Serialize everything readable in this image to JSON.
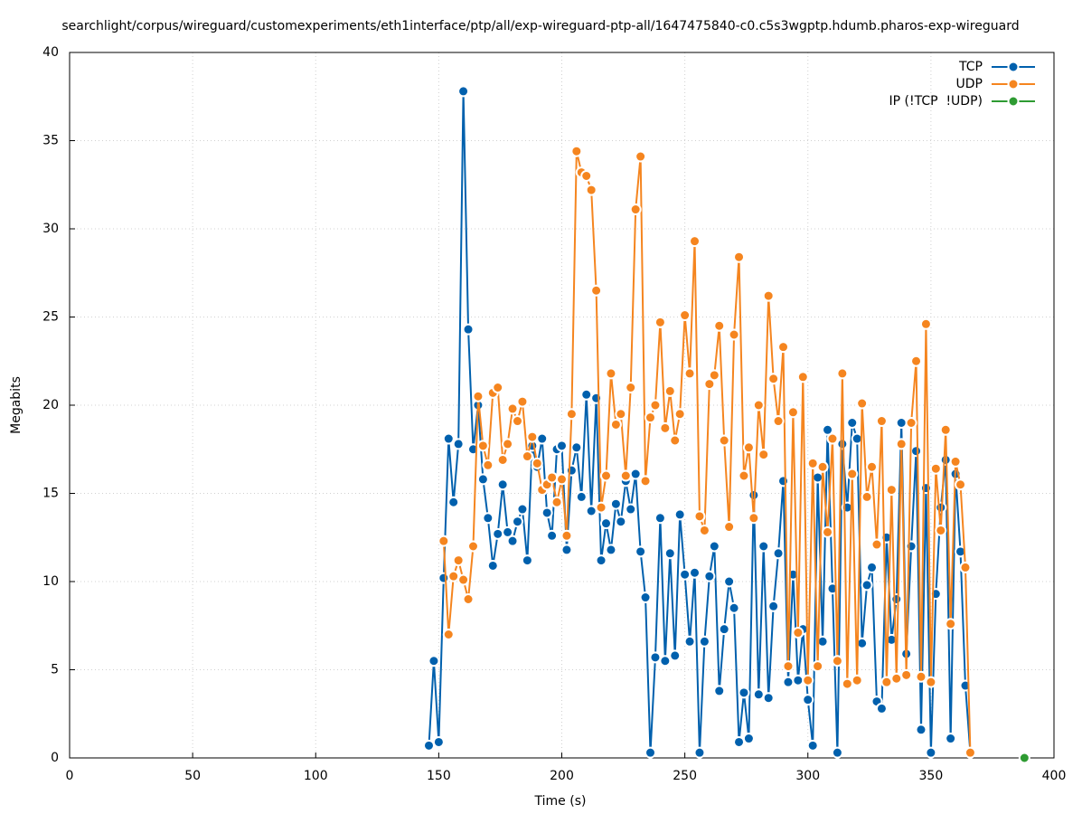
{
  "chart_data": {
    "type": "line",
    "title": "searchlight/corpus/wireguard/customexperiments/eth1interface/ptp/all/exp-wireguard-ptp-all/1647475840-c0.c5s3wgptp.hdumb.pharos-exp-wireguard",
    "x_label": "Time (s)",
    "y_label": "Megabits",
    "xlim": [
      0,
      400
    ],
    "xticks": [
      0,
      50,
      100,
      150,
      200,
      250,
      300,
      350,
      400
    ],
    "ylim": [
      0,
      40
    ],
    "yticks": [
      0,
      5,
      10,
      15,
      20,
      25,
      30,
      35,
      40
    ],
    "grid": true,
    "legend": "top-right",
    "x": [
      146,
      148,
      150,
      152,
      154,
      156,
      158,
      160,
      162,
      164,
      166,
      168,
      170,
      172,
      174,
      176,
      178,
      180,
      182,
      184,
      186,
      188,
      190,
      192,
      194,
      196,
      198,
      200,
      202,
      204,
      206,
      208,
      210,
      212,
      214,
      216,
      218,
      220,
      222,
      224,
      226,
      228,
      230,
      232,
      234,
      236,
      238,
      240,
      242,
      244,
      246,
      248,
      250,
      252,
      254,
      256,
      258,
      260,
      262,
      264,
      266,
      268,
      270,
      272,
      274,
      276,
      278,
      280,
      282,
      284,
      286,
      288,
      290,
      292,
      294,
      296,
      298,
      300,
      302,
      304,
      306,
      308,
      310,
      312,
      314,
      316,
      318,
      320,
      322,
      324,
      326,
      328,
      330,
      332,
      334,
      336,
      338,
      340,
      342,
      344,
      346,
      348,
      350,
      352,
      354,
      356,
      358,
      360,
      362,
      364,
      366
    ],
    "series": [
      {
        "name": "TCP",
        "color": "#0060ad",
        "values": [
          0.7,
          5.5,
          0.9,
          10.2,
          18.1,
          14.5,
          17.8,
          37.8,
          24.3,
          17.5,
          20,
          15.8,
          13.6,
          10.9,
          12.7,
          15.5,
          12.8,
          12.3,
          13.4,
          14.1,
          11.2,
          17.7,
          16.5,
          18.1,
          13.9,
          12.6,
          17.5,
          17.7,
          11.8,
          16.3,
          17.6,
          14.8,
          20.6,
          14.0,
          20.4,
          11.2,
          13.3,
          11.8,
          14.4,
          13.4,
          15.7,
          14.1,
          16.1,
          11.7,
          9.1,
          0.3,
          5.7,
          13.6,
          5.5,
          11.6,
          5.8,
          13.8,
          10.4,
          6.6,
          10.5,
          0.3,
          6.6,
          10.3,
          12.0,
          3.8,
          7.3,
          10.0,
          8.5,
          0.9,
          3.7,
          1.1,
          14.9,
          3.6,
          12.0,
          3.4,
          8.6,
          11.6,
          15.7,
          4.3,
          10.4,
          4.4,
          7.3,
          3.3,
          0.7,
          15.9,
          6.6,
          18.6,
          9.6,
          0.3,
          17.8,
          14.2,
          19.0,
          18.1,
          6.5,
          9.8,
          10.8,
          3.2,
          2.8,
          12.5,
          6.7,
          9.0,
          19.0,
          5.9,
          12.0,
          17.4,
          1.6,
          15.3,
          0.3,
          9.3,
          14.2,
          16.9,
          1.1,
          16.1,
          11.7,
          4.1,
          0.3
        ]
      },
      {
        "name": "UDP",
        "color": "#f5851f",
        "values": [
          null,
          null,
          null,
          12.3,
          7.0,
          10.3,
          11.2,
          10.1,
          9.0,
          12.0,
          20.5,
          17.7,
          16.6,
          20.7,
          21.0,
          16.9,
          17.8,
          19.8,
          19.1,
          20.2,
          17.1,
          18.2,
          16.7,
          15.2,
          15.5,
          15.9,
          14.5,
          15.8,
          12.6,
          19.5,
          34.4,
          33.2,
          33.0,
          32.2,
          26.5,
          14.2,
          16.0,
          21.8,
          18.9,
          19.5,
          16.0,
          21.0,
          31.1,
          34.1,
          15.7,
          19.3,
          20.0,
          24.7,
          18.7,
          20.8,
          18.0,
          19.5,
          25.1,
          21.8,
          29.3,
          13.7,
          12.9,
          21.2,
          21.7,
          24.5,
          18.0,
          13.1,
          24.0,
          28.4,
          16.0,
          17.6,
          13.6,
          20.0,
          17.2,
          26.2,
          21.5,
          19.1,
          23.3,
          5.2,
          19.6,
          7.1,
          21.6,
          4.4,
          16.7,
          5.2,
          16.5,
          12.8,
          18.1,
          5.5,
          21.8,
          4.2,
          16.1,
          4.4,
          20.1,
          14.8,
          16.5,
          12.1,
          19.1,
          4.3,
          15.2,
          4.5,
          17.8,
          4.7,
          19.0,
          22.5,
          4.6,
          24.6,
          4.3,
          16.4,
          12.9,
          18.6,
          7.6,
          16.8,
          15.5,
          10.8,
          0.3
        ]
      },
      {
        "name": "IP (!TCP  !UDP)",
        "color": "#2e9b32",
        "x": [
          388
        ],
        "values": [
          0
        ]
      }
    ]
  }
}
